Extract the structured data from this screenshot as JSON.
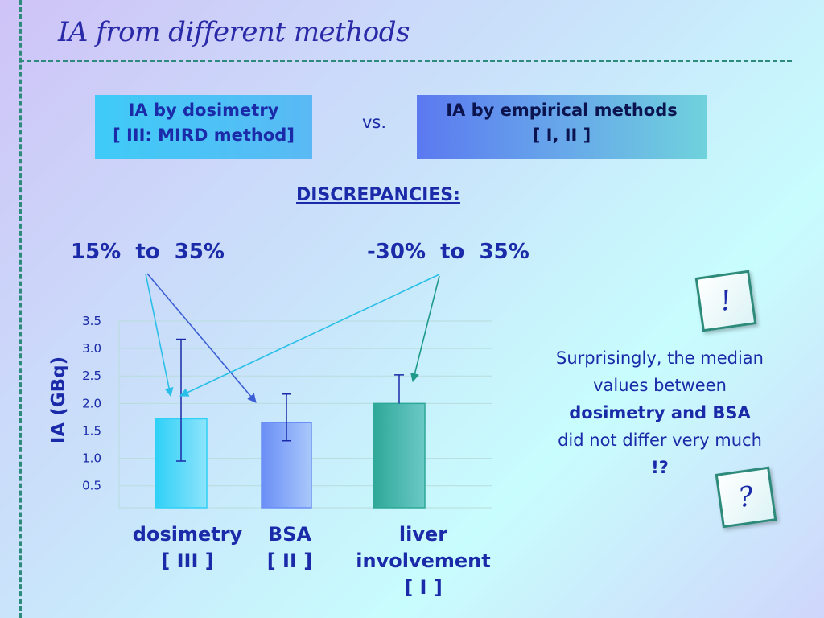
{
  "slide": {
    "title": "IA from different methods",
    "box_left": {
      "line1": "IA by dosimetry",
      "line2": "[ III: MIRD method]"
    },
    "vs": "vs.",
    "box_right": {
      "line1": "IA by empirical methods",
      "line2": "[ I, II ]"
    },
    "discrepancies": "DISCREPANCIES:",
    "range_left": "15%  to  35%",
    "range_right": "-30%  to  35%",
    "note": {
      "line1": "Surprisingly, the median",
      "line2": "values between",
      "line3": "dosimetry and BSA",
      "line4": "did not differ very much",
      "line5": "!?"
    },
    "tile_excl": "!",
    "tile_q": "?"
  },
  "chart_data": {
    "type": "bar",
    "title": "",
    "ylabel": "IA  (GBq)",
    "xlabel": "",
    "ylim": [
      0.1,
      3.5
    ],
    "yticks": [
      "3.5",
      "3.0",
      "2.5",
      "2.0",
      "1.5",
      "1.0",
      "0.5"
    ],
    "ytick_values": [
      3.5,
      3.0,
      2.5,
      2.0,
      1.5,
      1.0,
      0.5
    ],
    "grid": true,
    "categories": [
      {
        "line1": "dosimetry",
        "line2": "[ III ]",
        "line3": ""
      },
      {
        "line1": "BSA",
        "line2": "[ II ]",
        "line3": ""
      },
      {
        "line1": "liver",
        "line2": "involvement",
        "line3": "[ I ]"
      }
    ],
    "values": [
      1.72,
      1.65,
      2.0
    ],
    "error_low": [
      0.95,
      1.32,
      2.0
    ],
    "error_high": [
      3.17,
      2.17,
      2.52
    ],
    "colors": {
      "dosimetry": [
        "#2fd0f7",
        "#8de4fb"
      ],
      "bsa": [
        "#6a8ef6",
        "#a9c8fb"
      ],
      "liver": [
        "#2ea898",
        "#6cc9c6"
      ],
      "accent": "#1a2aa8",
      "rule": "#2e8b7c",
      "arrow_left": "#2abfe8",
      "arrow_blue": "#3d5fd6",
      "arrow_teal": "#1f9a8a"
    }
  }
}
